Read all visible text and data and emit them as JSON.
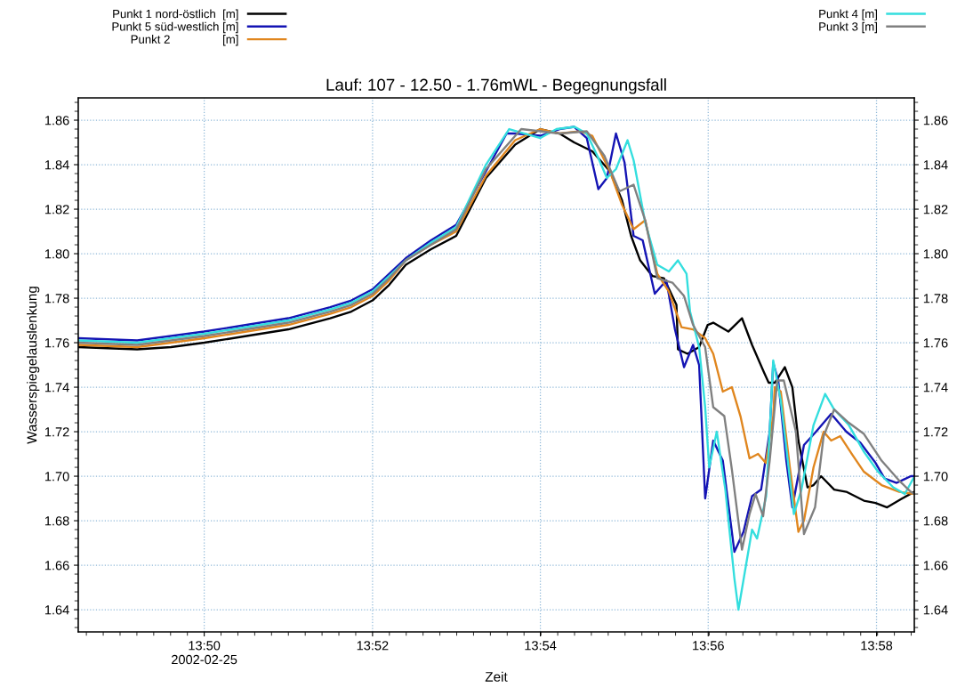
{
  "chart_data": {
    "type": "line",
    "title": "Lauf: 107 - 12.50 - 1.76mWL - Begegnungsfall",
    "xlabel": "Zeit",
    "ylabel": "Wasserspiegelauslenkung",
    "xlim": [
      13.8083,
      13.9742
    ],
    "xticks": [
      {
        "value": 13.8333,
        "label": "13:50\n2002-02-25"
      },
      {
        "value": 13.8667,
        "label": "13:52"
      },
      {
        "value": 13.9,
        "label": "13:54"
      },
      {
        "value": 13.9333,
        "label": "13:56"
      },
      {
        "value": 13.9667,
        "label": "13:58"
      }
    ],
    "ylim": [
      1.63,
      1.87
    ],
    "yticks": [
      {
        "value": 1.64,
        "label": "1.64"
      },
      {
        "value": 1.66,
        "label": "1.66"
      },
      {
        "value": 1.68,
        "label": "1.68"
      },
      {
        "value": 1.7,
        "label": "1.70"
      },
      {
        "value": 1.72,
        "label": "1.72"
      },
      {
        "value": 1.74,
        "label": "1.74"
      },
      {
        "value": 1.76,
        "label": "1.76"
      },
      {
        "value": 1.78,
        "label": "1.78"
      },
      {
        "value": 1.8,
        "label": "1.80"
      },
      {
        "value": 1.82,
        "label": "1.82"
      },
      {
        "value": 1.84,
        "label": "1.84"
      },
      {
        "value": 1.86,
        "label": "1.86"
      }
    ],
    "y2lim": [
      1.63,
      1.87
    ],
    "y2ticks": [
      {
        "value": 1.64,
        "label": "1.64"
      },
      {
        "value": 1.66,
        "label": "1.66"
      },
      {
        "value": 1.68,
        "label": "1.68"
      },
      {
        "value": 1.7,
        "label": "1.70"
      },
      {
        "value": 1.72,
        "label": "1.72"
      },
      {
        "value": 1.74,
        "label": "1.74"
      },
      {
        "value": 1.76,
        "label": "1.76"
      },
      {
        "value": 1.78,
        "label": "1.78"
      },
      {
        "value": 1.8,
        "label": "1.80"
      },
      {
        "value": 1.82,
        "label": "1.82"
      },
      {
        "value": 1.84,
        "label": "1.84"
      },
      {
        "value": 1.86,
        "label": "1.86"
      }
    ],
    "grid": true,
    "legend": "top",
    "marker": "none",
    "line_style": "solid",
    "series": [
      {
        "name": "Punkt 1 nord-östlich  [m]",
        "color": "#000000",
        "x": [
          13.8083,
          13.82,
          13.8267,
          13.8333,
          13.8417,
          13.85,
          13.8583,
          13.8625,
          13.8667,
          13.87,
          13.8733,
          13.8783,
          13.8833,
          13.8892,
          13.895,
          13.9,
          13.9038,
          13.9067,
          13.9103,
          13.9138,
          13.9162,
          13.918,
          13.9198,
          13.9222,
          13.9245,
          13.927,
          13.9273,
          13.9292,
          13.9315,
          13.9332,
          13.9343,
          13.9373,
          13.94,
          13.942,
          13.9443,
          13.9453,
          13.9465,
          13.9485,
          13.95,
          13.9512,
          13.953,
          13.9542,
          13.9557,
          13.9583,
          13.9607,
          13.9642,
          13.9665,
          13.9688,
          13.9718,
          13.9742
        ],
        "values": [
          1.758,
          1.757,
          1.758,
          1.76,
          1.763,
          1.766,
          1.771,
          1.774,
          1.779,
          1.786,
          1.795,
          1.802,
          1.808,
          1.834,
          1.849,
          1.856,
          1.854,
          1.85,
          1.846,
          1.837,
          1.824,
          1.808,
          1.797,
          1.79,
          1.789,
          1.777,
          1.757,
          1.755,
          1.758,
          1.768,
          1.769,
          1.765,
          1.771,
          1.759,
          1.747,
          1.742,
          1.742,
          1.749,
          1.74,
          1.716,
          1.695,
          1.696,
          1.7,
          1.694,
          1.693,
          1.689,
          1.688,
          1.686,
          1.69,
          1.693
        ]
      },
      {
        "name": "Punkt 5 süd-westlich [m]",
        "color": "#1414b4",
        "x": [
          13.8083,
          13.82,
          13.8267,
          13.8333,
          13.8417,
          13.85,
          13.8583,
          13.8625,
          13.8667,
          13.87,
          13.8733,
          13.8783,
          13.8833,
          13.8892,
          13.8933,
          13.895,
          13.9,
          13.9038,
          13.9067,
          13.9092,
          13.9115,
          13.9132,
          13.915,
          13.9167,
          13.9185,
          13.9203,
          13.9227,
          13.925,
          13.9267,
          13.9285,
          13.9303,
          13.9315,
          13.9327,
          13.9343,
          13.9362,
          13.9385,
          13.9403,
          13.942,
          13.9438,
          13.9455,
          13.9462,
          13.9472,
          13.9488,
          13.95,
          13.9523,
          13.9547,
          13.9577,
          13.9607,
          13.9635,
          13.9665,
          13.9683,
          13.9707,
          13.9735,
          13.9742
        ],
        "values": [
          1.762,
          1.761,
          1.763,
          1.765,
          1.768,
          1.771,
          1.776,
          1.779,
          1.784,
          1.791,
          1.798,
          1.806,
          1.813,
          1.837,
          1.854,
          1.854,
          1.853,
          1.856,
          1.857,
          1.852,
          1.829,
          1.834,
          1.854,
          1.841,
          1.808,
          1.806,
          1.782,
          1.788,
          1.766,
          1.749,
          1.759,
          1.75,
          1.69,
          1.716,
          1.707,
          1.666,
          1.675,
          1.691,
          1.694,
          1.72,
          1.751,
          1.743,
          1.707,
          1.686,
          1.714,
          1.72,
          1.728,
          1.72,
          1.715,
          1.706,
          1.699,
          1.697,
          1.7,
          1.7
        ]
      },
      {
        "name": "Punkt 2                [m]",
        "color": "#e0861e",
        "x": [
          13.8083,
          13.82,
          13.8267,
          13.8333,
          13.8417,
          13.85,
          13.8583,
          13.8625,
          13.8667,
          13.87,
          13.8733,
          13.8783,
          13.8833,
          13.8892,
          13.895,
          13.9,
          13.9038,
          13.908,
          13.9103,
          13.9138,
          13.9162,
          13.9185,
          13.9208,
          13.9232,
          13.9255,
          13.928,
          13.9303,
          13.9327,
          13.9343,
          13.9362,
          13.938,
          13.9397,
          13.9415,
          13.9432,
          13.9447,
          13.9462,
          13.9465,
          13.9477,
          13.9495,
          13.9512,
          13.9523,
          13.9542,
          13.9562,
          13.9577,
          13.9595,
          13.9618,
          13.9642,
          13.9677,
          13.9712,
          13.9742
        ],
        "values": [
          1.759,
          1.758,
          1.76,
          1.762,
          1.765,
          1.768,
          1.773,
          1.776,
          1.781,
          1.788,
          1.797,
          1.804,
          1.81,
          1.835,
          1.851,
          1.856,
          1.854,
          1.855,
          1.853,
          1.837,
          1.822,
          1.811,
          1.815,
          1.791,
          1.783,
          1.767,
          1.766,
          1.762,
          1.755,
          1.738,
          1.74,
          1.727,
          1.708,
          1.71,
          1.706,
          1.727,
          1.74,
          1.738,
          1.704,
          1.675,
          1.68,
          1.704,
          1.72,
          1.716,
          1.718,
          1.71,
          1.702,
          1.696,
          1.693,
          1.692
        ]
      },
      {
        "name": "Punkt 4 [m]",
        "color": "#33dede",
        "x": [
          13.8083,
          13.82,
          13.8267,
          13.8333,
          13.8417,
          13.85,
          13.8583,
          13.8625,
          13.8667,
          13.87,
          13.8733,
          13.8783,
          13.8833,
          13.8892,
          13.8938,
          13.9,
          13.9032,
          13.9068,
          13.9092,
          13.9115,
          13.9132,
          13.915,
          13.9173,
          13.9185,
          13.9208,
          13.9232,
          13.9255,
          13.9273,
          13.929,
          13.9297,
          13.9315,
          13.9327,
          13.9335,
          13.935,
          13.9367,
          13.9385,
          13.9393,
          13.9408,
          13.942,
          13.943,
          13.9448,
          13.9455,
          13.9462,
          13.9477,
          13.9495,
          13.9503,
          13.9518,
          13.9542,
          13.9565,
          13.9583,
          13.9612,
          13.9642,
          13.967,
          13.97,
          13.9723,
          13.974
        ],
        "values": [
          1.761,
          1.76,
          1.762,
          1.764,
          1.767,
          1.77,
          1.775,
          1.778,
          1.783,
          1.79,
          1.797,
          1.805,
          1.812,
          1.84,
          1.856,
          1.852,
          1.856,
          1.857,
          1.854,
          1.843,
          1.834,
          1.838,
          1.851,
          1.842,
          1.814,
          1.795,
          1.792,
          1.797,
          1.791,
          1.774,
          1.758,
          1.731,
          1.704,
          1.72,
          1.694,
          1.654,
          1.64,
          1.66,
          1.676,
          1.672,
          1.691,
          1.72,
          1.752,
          1.734,
          1.699,
          1.683,
          1.694,
          1.723,
          1.737,
          1.73,
          1.723,
          1.711,
          1.702,
          1.695,
          1.692,
          1.699
        ]
      },
      {
        "name": "Punkt 3 [m]",
        "color": "#808080",
        "x": [
          13.8083,
          13.82,
          13.8267,
          13.8333,
          13.8417,
          13.85,
          13.8583,
          13.8625,
          13.8667,
          13.87,
          13.8733,
          13.8783,
          13.8833,
          13.8892,
          13.8962,
          13.9,
          13.9038,
          13.9092,
          13.9127,
          13.9157,
          13.9185,
          13.9208,
          13.9232,
          13.9262,
          13.9285,
          13.9303,
          13.9327,
          13.9343,
          13.9365,
          13.938,
          13.94,
          13.9415,
          13.9427,
          13.9442,
          13.9455,
          13.947,
          13.9483,
          13.9507,
          13.9523,
          13.9545,
          13.9562,
          13.9583,
          13.9612,
          13.9642,
          13.9677,
          13.9712,
          13.9735,
          13.9742
        ],
        "values": [
          1.76,
          1.759,
          1.761,
          1.763,
          1.766,
          1.769,
          1.774,
          1.777,
          1.782,
          1.789,
          1.797,
          1.804,
          1.811,
          1.838,
          1.856,
          1.855,
          1.854,
          1.855,
          1.844,
          1.828,
          1.831,
          1.815,
          1.789,
          1.787,
          1.781,
          1.768,
          1.758,
          1.731,
          1.727,
          1.703,
          1.667,
          1.683,
          1.692,
          1.682,
          1.707,
          1.743,
          1.743,
          1.72,
          1.674,
          1.686,
          1.718,
          1.73,
          1.724,
          1.719,
          1.707,
          1.698,
          1.693,
          1.692
        ]
      }
    ]
  }
}
